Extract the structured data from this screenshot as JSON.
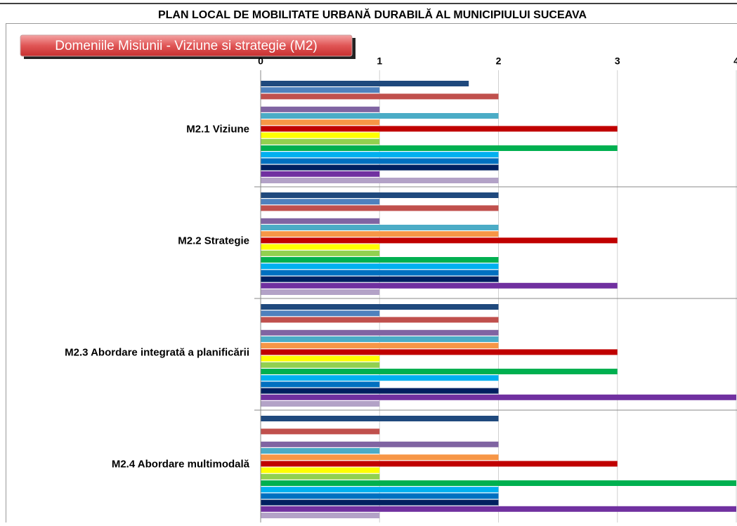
{
  "page_title": "PLAN LOCAL DE MOBILITATE URBANĂ DURABILĂ AL MUNICIPIULUI SUCEAVA",
  "chart_data": {
    "type": "bar",
    "orientation": "horizontal",
    "title": "Domeniile Misiunii - Viziune si strategie (M2)",
    "categories": [
      "M2.1  Viziune",
      "M2.2 Strategie",
      "M2.3 Abordare integrată a planificării",
      "M2.4 Abordare multimodală"
    ],
    "series": [
      {
        "color": "#1f497d",
        "values": [
          1.75,
          2,
          2,
          2
        ]
      },
      {
        "color": "#4f81bd",
        "values": [
          1,
          1,
          1,
          0
        ]
      },
      {
        "color": "#c0504d",
        "values": [
          2,
          2,
          2,
          1
        ]
      },
      {
        "color": "#9bbb59",
        "values": [
          0,
          0,
          0,
          0
        ]
      },
      {
        "color": "#8064a2",
        "values": [
          1,
          1,
          2,
          2
        ]
      },
      {
        "color": "#4bacc6",
        "values": [
          2,
          2,
          2,
          1
        ]
      },
      {
        "color": "#f79646",
        "values": [
          1,
          2,
          2,
          2
        ]
      },
      {
        "color": "#c00000",
        "values": [
          3,
          3,
          3,
          3
        ]
      },
      {
        "color": "#ffff00",
        "values": [
          1,
          1,
          1,
          1
        ]
      },
      {
        "color": "#92d050",
        "values": [
          1,
          1,
          1,
          1
        ]
      },
      {
        "color": "#00b050",
        "values": [
          3,
          2,
          3,
          4
        ]
      },
      {
        "color": "#00b0f0",
        "values": [
          2,
          2,
          2,
          2
        ]
      },
      {
        "color": "#0070c0",
        "values": [
          2,
          2,
          1,
          2
        ]
      },
      {
        "color": "#002060",
        "values": [
          2,
          2,
          2,
          2
        ]
      },
      {
        "color": "#7030a0",
        "values": [
          1,
          3,
          4,
          4
        ]
      },
      {
        "color": "#b3a2c7",
        "values": [
          2,
          1,
          1,
          1
        ]
      }
    ],
    "xlim": [
      0,
      4
    ],
    "xticks": [
      0,
      1,
      2,
      3,
      4
    ],
    "grid": true
  }
}
